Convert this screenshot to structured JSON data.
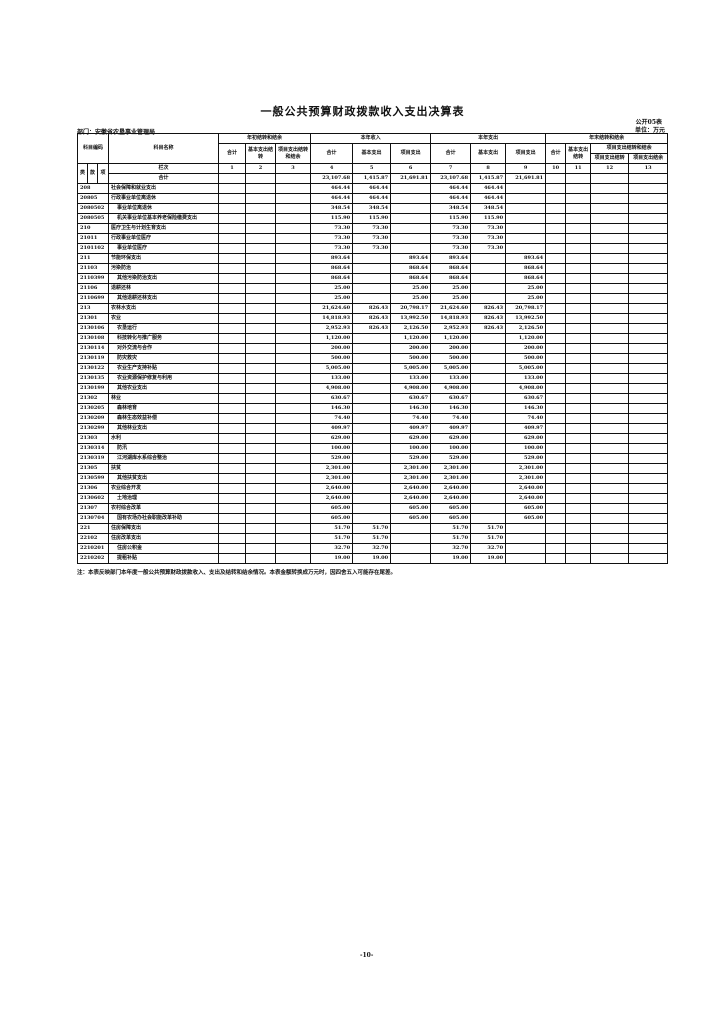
{
  "title": "一般公共预算财政拨款收入支出决算表",
  "form_no": "公开05表",
  "unit": "单位：万元",
  "department": "部门：安徽省农垦事业管理局",
  "headers": {
    "code": "科目编码",
    "name": "科目名称",
    "g1": "年初结转和结余",
    "g2": "本年收入",
    "g3": "本年支出",
    "g4": "年末结转和结余",
    "total": "合计",
    "basic_carry": "基本支出结转",
    "proj_carry": "项目支出结转和结余",
    "basic": "基本支出",
    "proj": "项目支出",
    "basic_carry2": "基本支出结转",
    "proj_group": "项目支出结转和结余",
    "proj_carry2": "项目支出结转",
    "proj_surplus": "项目支出结余",
    "lei": "类",
    "kuan": "款",
    "xiang": "项",
    "lanci": "栏次",
    "heji": "合计",
    "col_nums": [
      "1",
      "2",
      "3",
      "4",
      "5",
      "6",
      "7",
      "8",
      "9",
      "10",
      "11",
      "12",
      "13"
    ]
  },
  "total_row": [
    "",
    "",
    "",
    "23,107.68",
    "1,415.87",
    "21,691.81",
    "23,107.68",
    "1,415.87",
    "21,691.81",
    "",
    "",
    "",
    ""
  ],
  "rows": [
    {
      "code": "208",
      "name": "社会保障和就业支出",
      "level": 0,
      "v": [
        "464.44",
        "464.44",
        "",
        "464.44",
        "464.44",
        ""
      ]
    },
    {
      "code": "20805",
      "name": "行政事业单位离退休",
      "level": 0,
      "v": [
        "464.44",
        "464.44",
        "",
        "464.44",
        "464.44",
        ""
      ]
    },
    {
      "code": "2080502",
      "name": "事业单位离退休",
      "level": 1,
      "v": [
        "348.54",
        "348.54",
        "",
        "348.54",
        "348.54",
        ""
      ]
    },
    {
      "code": "2080505",
      "name": "机关事业单位基本养老保险缴费支出",
      "level": 1,
      "v": [
        "115.90",
        "115.90",
        "",
        "115.90",
        "115.90",
        ""
      ]
    },
    {
      "code": "210",
      "name": "医疗卫生与计划生育支出",
      "level": 0,
      "v": [
        "73.30",
        "73.30",
        "",
        "73.30",
        "73.30",
        ""
      ]
    },
    {
      "code": "21011",
      "name": "行政事业单位医疗",
      "level": 0,
      "v": [
        "73.30",
        "73.30",
        "",
        "73.30",
        "73.30",
        ""
      ]
    },
    {
      "code": "2101102",
      "name": "事业单位医疗",
      "level": 1,
      "v": [
        "73.30",
        "73.30",
        "",
        "73.30",
        "73.30",
        ""
      ]
    },
    {
      "code": "211",
      "name": "节能环保支出",
      "level": 0,
      "v": [
        "893.64",
        "",
        "893.64",
        "893.64",
        "",
        "893.64"
      ]
    },
    {
      "code": "21103",
      "name": "污染防治",
      "level": 0,
      "v": [
        "868.64",
        "",
        "868.64",
        "868.64",
        "",
        "868.64"
      ]
    },
    {
      "code": "2110399",
      "name": "其他污染防治支出",
      "level": 1,
      "v": [
        "868.64",
        "",
        "868.64",
        "868.64",
        "",
        "868.64"
      ]
    },
    {
      "code": "21106",
      "name": "退耕还林",
      "level": 0,
      "v": [
        "25.00",
        "",
        "25.00",
        "25.00",
        "",
        "25.00"
      ]
    },
    {
      "code": "2110699",
      "name": "其他退耕还林支出",
      "level": 1,
      "v": [
        "25.00",
        "",
        "25.00",
        "25.00",
        "",
        "25.00"
      ]
    },
    {
      "code": "213",
      "name": "农林水支出",
      "level": 0,
      "v": [
        "21,624.60",
        "826.43",
        "20,798.17",
        "21,624.60",
        "826.43",
        "20,798.17"
      ]
    },
    {
      "code": "21301",
      "name": "农业",
      "level": 0,
      "v": [
        "14,818.93",
        "826.43",
        "13,992.50",
        "14,818.93",
        "826.43",
        "13,992.50"
      ]
    },
    {
      "code": "2130106",
      "name": "农垦运行",
      "level": 1,
      "v": [
        "2,952.93",
        "826.43",
        "2,126.50",
        "2,952.93",
        "826.43",
        "2,126.50"
      ]
    },
    {
      "code": "2130108",
      "name": "科技转化与推广服务",
      "level": 1,
      "v": [
        "1,120.00",
        "",
        "1,120.00",
        "1,120.00",
        "",
        "1,120.00"
      ]
    },
    {
      "code": "2130114",
      "name": "对外交流与合作",
      "level": 1,
      "v": [
        "200.00",
        "",
        "200.00",
        "200.00",
        "",
        "200.00"
      ]
    },
    {
      "code": "2130119",
      "name": "防灾救灾",
      "level": 1,
      "v": [
        "500.00",
        "",
        "500.00",
        "500.00",
        "",
        "500.00"
      ]
    },
    {
      "code": "2130122",
      "name": "农业生产支持补贴",
      "level": 1,
      "v": [
        "5,005.00",
        "",
        "5,005.00",
        "5,005.00",
        "",
        "5,005.00"
      ]
    },
    {
      "code": "2130135",
      "name": "农业资源保护修复与利用",
      "level": 1,
      "v": [
        "133.00",
        "",
        "133.00",
        "133.00",
        "",
        "133.00"
      ]
    },
    {
      "code": "2130199",
      "name": "其他农业支出",
      "level": 1,
      "v": [
        "4,908.00",
        "",
        "4,908.00",
        "4,908.00",
        "",
        "4,908.00"
      ]
    },
    {
      "code": "21302",
      "name": "林业",
      "level": 0,
      "v": [
        "630.67",
        "",
        "630.67",
        "630.67",
        "",
        "630.67"
      ]
    },
    {
      "code": "2130205",
      "name": "森林培育",
      "level": 1,
      "v": [
        "146.30",
        "",
        "146.30",
        "146.30",
        "",
        "146.30"
      ]
    },
    {
      "code": "2130209",
      "name": "森林生态效益补偿",
      "level": 1,
      "v": [
        "74.40",
        "",
        "74.40",
        "74.40",
        "",
        "74.40"
      ]
    },
    {
      "code": "2130299",
      "name": "其他林业支出",
      "level": 1,
      "v": [
        "409.97",
        "",
        "409.97",
        "409.97",
        "",
        "409.97"
      ]
    },
    {
      "code": "21303",
      "name": "水利",
      "level": 0,
      "v": [
        "629.00",
        "",
        "629.00",
        "629.00",
        "",
        "629.00"
      ]
    },
    {
      "code": "2130314",
      "name": "防汛",
      "level": 1,
      "v": [
        "100.00",
        "",
        "100.00",
        "100.00",
        "",
        "100.00"
      ]
    },
    {
      "code": "2130319",
      "name": "江河湖库水系综合整治",
      "level": 1,
      "v": [
        "529.00",
        "",
        "529.00",
        "529.00",
        "",
        "529.00"
      ]
    },
    {
      "code": "21305",
      "name": "扶贫",
      "level": 0,
      "v": [
        "2,301.00",
        "",
        "2,301.00",
        "2,301.00",
        "",
        "2,301.00"
      ]
    },
    {
      "code": "2130599",
      "name": "其他扶贫支出",
      "level": 1,
      "v": [
        "2,301.00",
        "",
        "2,301.00",
        "2,301.00",
        "",
        "2,301.00"
      ]
    },
    {
      "code": "21306",
      "name": "农业综合开发",
      "level": 0,
      "v": [
        "2,640.00",
        "",
        "2,640.00",
        "2,640.00",
        "",
        "2,640.00"
      ]
    },
    {
      "code": "2130602",
      "name": "土地治理",
      "level": 1,
      "v": [
        "2,640.00",
        "",
        "2,640.00",
        "2,640.00",
        "",
        "2,640.00"
      ]
    },
    {
      "code": "21307",
      "name": "农村综合改革",
      "level": 0,
      "v": [
        "605.00",
        "",
        "605.00",
        "605.00",
        "",
        "605.00"
      ]
    },
    {
      "code": "2130704",
      "name": "国有农场办社会职能改革补助",
      "level": 1,
      "v": [
        "605.00",
        "",
        "605.00",
        "605.00",
        "",
        "605.00"
      ]
    },
    {
      "code": "221",
      "name": "住房保障支出",
      "level": 0,
      "v": [
        "51.70",
        "51.70",
        "",
        "51.70",
        "51.70",
        ""
      ]
    },
    {
      "code": "22102",
      "name": "住房改革支出",
      "level": 0,
      "v": [
        "51.70",
        "51.70",
        "",
        "51.70",
        "51.70",
        ""
      ]
    },
    {
      "code": "2210201",
      "name": "住房公积金",
      "level": 1,
      "v": [
        "32.70",
        "32.70",
        "",
        "32.70",
        "32.70",
        ""
      ]
    },
    {
      "code": "2210202",
      "name": "提租补贴",
      "level": 1,
      "v": [
        "19.00",
        "19.00",
        "",
        "19.00",
        "19.00",
        ""
      ]
    }
  ],
  "note": "注：本表反映部门本年度一般公共预算财政拨款收入、支出及结转和结余情况。本表金额转换成万元时，因四舍五入可能存在尾差。",
  "page_number": "-10-"
}
